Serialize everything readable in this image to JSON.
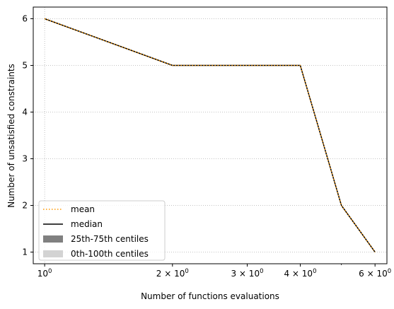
{
  "chart_data": {
    "type": "line",
    "title": "",
    "xlabel": "Number of functions evaluations",
    "ylabel": "Number of unsatisfied constraints",
    "xscale": "log",
    "xlim": [
      0.94,
      6.4
    ],
    "ylim": [
      0.75,
      6.25
    ],
    "grid": true,
    "legend_position": "lower-left",
    "xticks": [
      {
        "value": 1,
        "base": "10",
        "exp": "0"
      },
      {
        "value": 2,
        "base": "2 × 10",
        "exp": "0"
      },
      {
        "value": 3,
        "base": "3 × 10",
        "exp": "0"
      },
      {
        "value": 4,
        "base": "4 × 10",
        "exp": "0"
      },
      {
        "value": 6,
        "base": "6 × 10",
        "exp": "0"
      }
    ],
    "yticks": [
      1,
      2,
      3,
      4,
      5,
      6
    ],
    "x": [
      1,
      2,
      4,
      5,
      6
    ],
    "series": [
      {
        "name": "mean",
        "values": [
          6,
          5,
          5,
          2,
          1
        ],
        "color": "#ff9900",
        "style": "dotted"
      },
      {
        "name": "median",
        "values": [
          6,
          5,
          5,
          2,
          1
        ],
        "color": "#000000",
        "style": "solid"
      }
    ],
    "bands": [
      {
        "name": "25th-75th centiles",
        "color": "#808080"
      },
      {
        "name": "0th-100th centiles",
        "color": "#d3d3d3"
      }
    ]
  }
}
